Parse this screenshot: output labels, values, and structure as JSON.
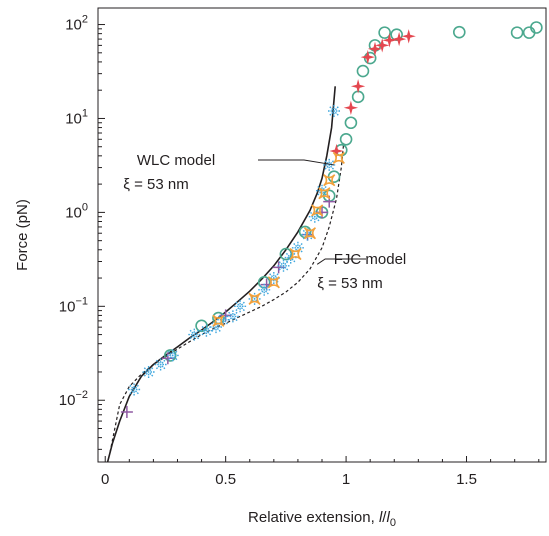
{
  "chart_data": {
    "type": "scatter",
    "xlabel": "Relative extension, l/l0",
    "xlabel_parts": {
      "main": "Relative extension, ",
      "var": "l",
      "slash": "/",
      "var0": "l",
      "sub": "0"
    },
    "ylabel": "Force (pN)",
    "xlim": [
      -0.03,
      1.83
    ],
    "ylim": [
      0.0022,
      150
    ],
    "x_scale": "linear",
    "y_scale": "log",
    "grid": false,
    "x_ticks": [
      {
        "value": 0,
        "label": "0"
      },
      {
        "value": 0.5,
        "label": "0.5"
      },
      {
        "value": 1,
        "label": "1"
      },
      {
        "value": 1.5,
        "label": "1.5"
      }
    ],
    "y_ticks": [
      {
        "value": 0.01,
        "base": "10",
        "exp": "−2"
      },
      {
        "value": 0.1,
        "base": "10",
        "exp": "−1"
      },
      {
        "value": 1,
        "base": "10",
        "exp": "0"
      },
      {
        "value": 10,
        "base": "10",
        "exp": "1"
      },
      {
        "value": 100,
        "base": "10",
        "exp": "2"
      }
    ],
    "annotations": [
      {
        "id": "wlc",
        "line1": "WLC model",
        "line2": "ξ = 53 nm",
        "points_to": [
          0.95,
          3.2
        ]
      },
      {
        "id": "fjc",
        "line1": "FJC model",
        "line2": "ξ = 53 nm",
        "points_to": [
          0.88,
          0.28
        ]
      }
    ],
    "models": [
      {
        "id": "wlc",
        "style": "solid",
        "color": "#231f20",
        "x": [
          0.01,
          0.03,
          0.06,
          0.1,
          0.15,
          0.2,
          0.25,
          0.3,
          0.35,
          0.4,
          0.45,
          0.5,
          0.55,
          0.6,
          0.65,
          0.7,
          0.75,
          0.8,
          0.85,
          0.88,
          0.9,
          0.92,
          0.94,
          0.955
        ],
        "y": [
          0.0022,
          0.0035,
          0.006,
          0.011,
          0.018,
          0.024,
          0.03,
          0.037,
          0.046,
          0.056,
          0.069,
          0.087,
          0.112,
          0.145,
          0.195,
          0.27,
          0.4,
          0.62,
          1.05,
          1.6,
          2.3,
          4.0,
          8.0,
          22
        ]
      },
      {
        "id": "fjc",
        "style": "dashed",
        "color": "#231f20",
        "x": [
          0.02,
          0.06,
          0.1,
          0.15,
          0.2,
          0.25,
          0.3,
          0.35,
          0.4,
          0.45,
          0.5,
          0.55,
          0.6,
          0.65,
          0.7,
          0.75,
          0.8,
          0.85,
          0.9,
          0.93,
          0.96,
          0.98,
          0.99
        ],
        "y": [
          0.0028,
          0.009,
          0.014,
          0.019,
          0.024,
          0.029,
          0.035,
          0.042,
          0.05,
          0.058,
          0.066,
          0.076,
          0.087,
          0.1,
          0.118,
          0.142,
          0.18,
          0.25,
          0.42,
          0.7,
          1.4,
          3.0,
          5.5
        ]
      }
    ],
    "series": [
      {
        "marker": "circle",
        "color": "#4ba88e",
        "x": [
          0.27,
          0.4,
          0.47,
          0.66,
          0.75,
          0.83,
          0.9,
          0.93,
          0.95,
          0.98,
          1.0,
          1.02,
          1.05,
          1.07,
          1.1,
          1.12,
          1.16,
          1.21,
          1.47,
          1.71,
          1.76,
          1.79
        ],
        "y": [
          0.03,
          0.062,
          0.075,
          0.18,
          0.36,
          0.62,
          1.0,
          1.5,
          2.4,
          4.6,
          6.0,
          9.0,
          17,
          32,
          44,
          60,
          82,
          78,
          83,
          82,
          82,
          93
        ]
      },
      {
        "marker": "star",
        "color": "#e4474f",
        "x": [
          0.96,
          1.02,
          1.05,
          1.09,
          1.12,
          1.15,
          1.18,
          1.22,
          1.26
        ],
        "y": [
          4.5,
          13,
          22,
          45,
          55,
          60,
          68,
          70,
          75
        ]
      },
      {
        "marker": "plus",
        "color": "#8f5aa3",
        "x": [
          0.09,
          0.26,
          0.5,
          0.67,
          0.72,
          0.84,
          0.9,
          0.93
        ],
        "y": [
          0.0075,
          0.028,
          0.08,
          0.17,
          0.26,
          0.58,
          1.0,
          1.3
        ]
      },
      {
        "marker": "asterisk",
        "color": "#3fa7de",
        "x": [
          0.12,
          0.18,
          0.23,
          0.28,
          0.37,
          0.42,
          0.46,
          0.49,
          0.53,
          0.56,
          0.62,
          0.66,
          0.7,
          0.74,
          0.77,
          0.8,
          0.84,
          0.87,
          0.9,
          0.93,
          0.95
        ],
        "y": [
          0.013,
          0.02,
          0.024,
          0.03,
          0.05,
          0.055,
          0.06,
          0.072,
          0.078,
          0.1,
          0.12,
          0.15,
          0.2,
          0.27,
          0.33,
          0.42,
          0.58,
          0.9,
          1.7,
          3.2,
          12
        ]
      },
      {
        "marker": "square-star",
        "color": "#f2a13b",
        "x": [
          0.47,
          0.62,
          0.7,
          0.79,
          0.85,
          0.88,
          0.91,
          0.93,
          0.97
        ],
        "y": [
          0.07,
          0.12,
          0.18,
          0.36,
          0.6,
          1.05,
          1.6,
          2.2,
          3.8
        ]
      }
    ]
  }
}
